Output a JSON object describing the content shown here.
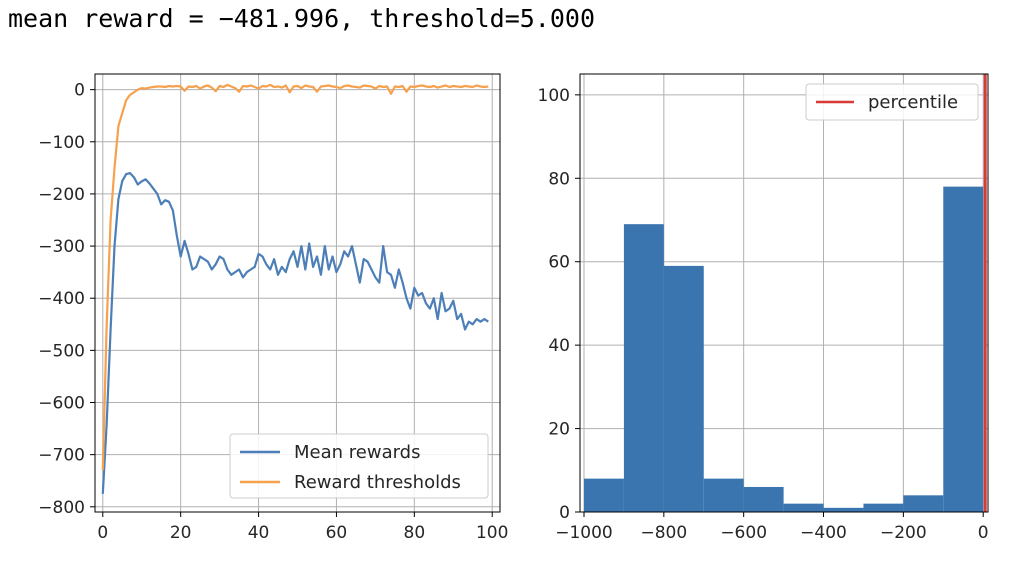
{
  "header": {
    "text": "mean reward = −481.996, threshold=5.000"
  },
  "chart_data": [
    {
      "type": "line",
      "grid": true,
      "legend_position": "bottom-right",
      "xlim": [
        -2,
        102
      ],
      "ylim": [
        -810,
        30
      ],
      "x_ticks": [
        0,
        20,
        40,
        60,
        80,
        100
      ],
      "x_tick_labels": [
        "0",
        "20",
        "40",
        "60",
        "80",
        "100"
      ],
      "y_ticks": [
        0,
        -100,
        -200,
        -300,
        -400,
        -500,
        -600,
        -700,
        -800
      ],
      "y_tick_labels": [
        "0",
        "−100",
        "−200",
        "−300",
        "−400",
        "−500",
        "−600",
        "−700",
        "−800"
      ],
      "series": [
        {
          "name": "Mean rewards",
          "color": "#4c7fb8",
          "x": [
            0,
            1,
            2,
            3,
            4,
            5,
            6,
            7,
            8,
            9,
            10,
            11,
            12,
            13,
            14,
            15,
            16,
            17,
            18,
            19,
            20,
            21,
            22,
            23,
            24,
            25,
            26,
            27,
            28,
            29,
            30,
            31,
            32,
            33,
            34,
            35,
            36,
            37,
            38,
            39,
            40,
            41,
            42,
            43,
            44,
            45,
            46,
            47,
            48,
            49,
            50,
            51,
            52,
            53,
            54,
            55,
            56,
            57,
            58,
            59,
            60,
            61,
            62,
            63,
            64,
            65,
            66,
            67,
            68,
            69,
            70,
            71,
            72,
            73,
            74,
            75,
            76,
            77,
            78,
            79,
            80,
            81,
            82,
            83,
            84,
            85,
            86,
            87,
            88,
            89,
            90,
            91,
            92,
            93,
            94,
            95,
            96,
            97,
            98,
            99
          ],
          "values": [
            -775,
            -640,
            -460,
            -300,
            -210,
            -175,
            -162,
            -160,
            -168,
            -182,
            -176,
            -172,
            -180,
            -190,
            -200,
            -220,
            -212,
            -215,
            -232,
            -280,
            -320,
            -290,
            -315,
            -345,
            -340,
            -320,
            -325,
            -330,
            -345,
            -335,
            -320,
            -325,
            -345,
            -355,
            -350,
            -345,
            -360,
            -350,
            -345,
            -340,
            -315,
            -320,
            -335,
            -345,
            -325,
            -355,
            -340,
            -350,
            -325,
            -310,
            -340,
            -300,
            -345,
            -295,
            -340,
            -320,
            -355,
            -300,
            -345,
            -320,
            -350,
            -335,
            -310,
            -320,
            -300,
            -335,
            -370,
            -325,
            -330,
            -345,
            -360,
            -370,
            -300,
            -350,
            -355,
            -380,
            -345,
            -370,
            -400,
            -420,
            -380,
            -395,
            -390,
            -410,
            -420,
            -400,
            -440,
            -390,
            -425,
            -420,
            -405,
            -440,
            -430,
            -460,
            -445,
            -450,
            -440,
            -445,
            -440,
            -445
          ]
        },
        {
          "name": "Reward thresholds",
          "color": "#f5a14e",
          "x": [
            0,
            1,
            2,
            3,
            4,
            5,
            6,
            7,
            8,
            9,
            10,
            11,
            12,
            13,
            14,
            15,
            16,
            17,
            18,
            19,
            20,
            21,
            22,
            23,
            24,
            25,
            26,
            27,
            28,
            29,
            30,
            31,
            32,
            33,
            34,
            35,
            36,
            37,
            38,
            39,
            40,
            41,
            42,
            43,
            44,
            45,
            46,
            47,
            48,
            49,
            50,
            51,
            52,
            53,
            54,
            55,
            56,
            57,
            58,
            59,
            60,
            61,
            62,
            63,
            64,
            65,
            66,
            67,
            68,
            69,
            70,
            71,
            72,
            73,
            74,
            75,
            76,
            77,
            78,
            79,
            80,
            81,
            82,
            83,
            84,
            85,
            86,
            87,
            88,
            89,
            90,
            91,
            92,
            93,
            94,
            95,
            96,
            97,
            98,
            99
          ],
          "values": [
            -730,
            -450,
            -250,
            -150,
            -70,
            -45,
            -20,
            -10,
            -5,
            0,
            3,
            2,
            4,
            5,
            6,
            6,
            5,
            7,
            6,
            7,
            6,
            -2,
            6,
            5,
            7,
            2,
            6,
            8,
            4,
            -3,
            7,
            5,
            9,
            6,
            3,
            -4,
            7,
            6,
            8,
            5,
            2,
            7,
            6,
            9,
            5,
            6,
            4,
            8,
            -5,
            6,
            7,
            3,
            8,
            6,
            5,
            -4,
            6,
            7,
            8,
            6,
            5,
            3,
            7,
            8,
            6,
            5,
            4,
            8,
            7,
            6,
            2,
            7,
            5,
            6,
            -8,
            6,
            5,
            7,
            -4,
            6,
            5,
            7,
            8,
            6,
            5,
            7,
            4,
            6,
            8,
            5,
            7,
            6,
            5,
            7,
            6,
            5,
            8,
            6,
            5,
            6
          ]
        }
      ]
    },
    {
      "type": "bar",
      "subtype": "histogram",
      "grid": true,
      "legend_position": "top-right",
      "xlim": [
        -1010,
        12
      ],
      "ylim": [
        0,
        105
      ],
      "x_ticks": [
        -1000,
        -800,
        -600,
        -400,
        -200,
        0
      ],
      "x_tick_labels": [
        "−1000",
        "−800",
        "−600",
        "−400",
        "−200",
        "0"
      ],
      "y_ticks": [
        0,
        20,
        40,
        60,
        80,
        100
      ],
      "y_tick_labels": [
        "0",
        "20",
        "40",
        "60",
        "80",
        "100"
      ],
      "bin_edges": [
        -1000,
        -900,
        -800,
        -700,
        -600,
        -500,
        -400,
        -300,
        -200,
        -100,
        0
      ],
      "values": [
        8,
        69,
        59,
        8,
        6,
        2,
        1,
        2,
        4,
        78
      ],
      "bar_color": "#3a75b0",
      "percentile": {
        "name": "percentile",
        "x": 5,
        "color": "#d83b35"
      }
    }
  ]
}
